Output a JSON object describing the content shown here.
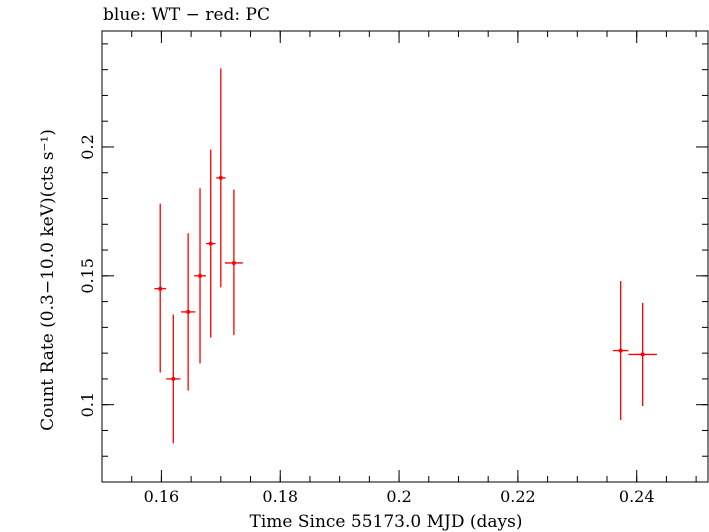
{
  "chart_data": {
    "type": "scatter",
    "title": "blue: WT − red: PC",
    "xlabel": "Time Since 55173.0 MJD (days)",
    "ylabel": "Count Rate (0.3−10.0 keV)(cts s⁻¹)",
    "xlim": [
      0.15,
      0.252
    ],
    "ylim": [
      0.07,
      0.245
    ],
    "x_ticks": [
      {
        "value": 0.16,
        "label": "0.16"
      },
      {
        "value": 0.18,
        "label": "0.18"
      },
      {
        "value": 0.2,
        "label": "0.2"
      },
      {
        "value": 0.22,
        "label": "0.22"
      },
      {
        "value": 0.24,
        "label": "0.24"
      }
    ],
    "y_ticks": [
      {
        "value": 0.1,
        "label": "0.1"
      },
      {
        "value": 0.15,
        "label": "0.15"
      },
      {
        "value": 0.2,
        "label": "0.2"
      }
    ],
    "grid": false,
    "series": [
      {
        "color": "#ff0000",
        "points": [
          {
            "x": 0.1598,
            "xerr": 0.001,
            "y": 0.145,
            "ylo": 0.1125,
            "yhi": 0.178
          },
          {
            "x": 0.162,
            "xerr": 0.0012,
            "y": 0.11,
            "ylo": 0.085,
            "yhi": 0.135
          },
          {
            "x": 0.1645,
            "xerr": 0.0012,
            "y": 0.136,
            "ylo": 0.1055,
            "yhi": 0.1665
          },
          {
            "x": 0.1665,
            "xerr": 0.001,
            "y": 0.15,
            "ylo": 0.116,
            "yhi": 0.184
          },
          {
            "x": 0.1683,
            "xerr": 0.0008,
            "y": 0.1625,
            "ylo": 0.126,
            "yhi": 0.199
          },
          {
            "x": 0.17,
            "xerr": 0.0008,
            "y": 0.188,
            "ylo": 0.1455,
            "yhi": 0.2305
          },
          {
            "x": 0.1722,
            "xerr": 0.0015,
            "y": 0.155,
            "ylo": 0.127,
            "yhi": 0.1835
          },
          {
            "x": 0.2373,
            "xerr": 0.0013,
            "y": 0.121,
            "ylo": 0.094,
            "yhi": 0.148
          },
          {
            "x": 0.241,
            "xerr": 0.0024,
            "y": 0.1195,
            "ylo": 0.0995,
            "yhi": 0.1395
          }
        ]
      }
    ]
  }
}
